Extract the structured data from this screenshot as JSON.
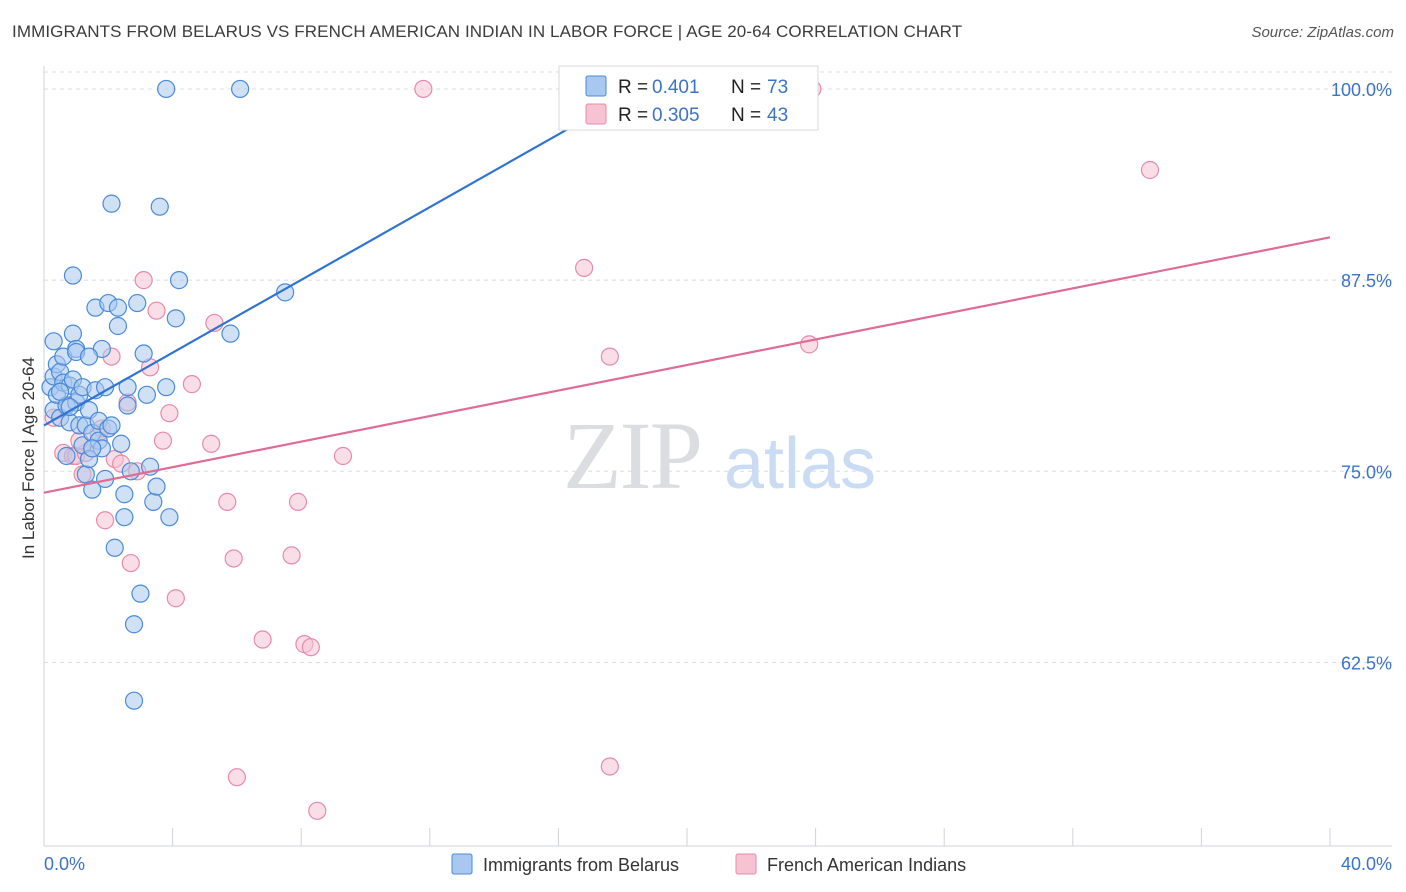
{
  "title": "IMMIGRANTS FROM BELARUS VS FRENCH AMERICAN INDIAN IN LABOR FORCE | AGE 20-64 CORRELATION CHART",
  "source": "Source: ZipAtlas.com",
  "watermark": {
    "zip": "ZIP",
    "atlas": "atlas"
  },
  "colors": {
    "blue_fill": "#a9c8ef",
    "blue_stroke": "#4a8bd9",
    "blue_line": "#2f74d0",
    "pink_fill": "#f6c3d3",
    "pink_stroke": "#e88aa8",
    "pink_line": "#e06b93",
    "accent_text": "#3b73c8",
    "grid": "#d8dde6"
  },
  "chart_data": {
    "type": "scatter",
    "title": "IMMIGRANTS FROM BELARUS VS FRENCH AMERICAN INDIAN IN LABOR FORCE | AGE 20-64 CORRELATION CHART",
    "xlabel": "",
    "ylabel": "In Labor Force | Age 20-64",
    "xlim": [
      0,
      40
    ],
    "ylim": [
      50.5,
      101.5
    ],
    "x_tick_labels": {
      "min": "0.0%",
      "max": "40.0%"
    },
    "y_ticks": [
      {
        "value": 100.0,
        "label": "100.0%"
      },
      {
        "value": 87.5,
        "label": "87.5%"
      },
      {
        "value": 75.0,
        "label": "75.0%"
      },
      {
        "value": 62.5,
        "label": "62.5%"
      }
    ],
    "legend": {
      "rows": [
        {
          "r_label": "R =",
          "r_value": "0.401",
          "n_label": "N =",
          "n_value": "73"
        },
        {
          "r_label": "R =",
          "r_value": "0.305",
          "n_label": "N =",
          "n_value": "43"
        }
      ]
    },
    "series": [
      {
        "name": "Immigrants from Belarus",
        "color": "blue",
        "trendline": {
          "x": [
            0.0,
            18.5
          ],
          "y": [
            78.0,
            100.0
          ]
        },
        "points": [
          [
            0.2,
            80.5
          ],
          [
            0.3,
            81.2
          ],
          [
            0.3,
            79.0
          ],
          [
            0.4,
            82.0
          ],
          [
            0.4,
            80.0
          ],
          [
            0.5,
            78.5
          ],
          [
            0.5,
            81.5
          ],
          [
            0.6,
            80.8
          ],
          [
            0.6,
            82.5
          ],
          [
            0.7,
            79.3
          ],
          [
            0.8,
            80.6
          ],
          [
            0.8,
            78.2
          ],
          [
            0.9,
            81.0
          ],
          [
            0.9,
            84.0
          ],
          [
            0.9,
            87.8
          ],
          [
            1.0,
            83.0
          ],
          [
            1.0,
            79.5
          ],
          [
            1.1,
            80.0
          ],
          [
            1.1,
            78.0
          ],
          [
            1.2,
            76.7
          ],
          [
            1.2,
            80.5
          ],
          [
            1.3,
            74.8
          ],
          [
            1.3,
            78.0
          ],
          [
            1.4,
            75.8
          ],
          [
            1.4,
            79.0
          ],
          [
            1.5,
            77.5
          ],
          [
            1.5,
            73.8
          ],
          [
            1.6,
            85.7
          ],
          [
            1.6,
            80.3
          ],
          [
            1.7,
            77.0
          ],
          [
            1.7,
            78.3
          ],
          [
            1.8,
            83.0
          ],
          [
            1.8,
            76.5
          ],
          [
            1.9,
            74.5
          ],
          [
            1.9,
            80.5
          ],
          [
            2.0,
            86.0
          ],
          [
            2.0,
            77.8
          ],
          [
            2.1,
            78.0
          ],
          [
            2.2,
            70.0
          ],
          [
            2.3,
            84.5
          ],
          [
            2.3,
            85.7
          ],
          [
            2.4,
            76.8
          ],
          [
            2.5,
            73.5
          ],
          [
            2.5,
            72.0
          ],
          [
            2.6,
            79.3
          ],
          [
            2.7,
            75.0
          ],
          [
            2.8,
            65.0
          ],
          [
            2.8,
            60.0
          ],
          [
            2.9,
            86.0
          ],
          [
            3.0,
            67.0
          ],
          [
            3.1,
            82.7
          ],
          [
            3.2,
            80.0
          ],
          [
            3.3,
            75.3
          ],
          [
            3.4,
            73.0
          ],
          [
            3.5,
            74.0
          ],
          [
            3.6,
            92.3
          ],
          [
            3.8,
            80.5
          ],
          [
            3.9,
            72.0
          ],
          [
            4.1,
            85.0
          ],
          [
            4.2,
            87.5
          ],
          [
            5.8,
            84.0
          ],
          [
            7.5,
            86.7
          ],
          [
            3.8,
            100.0
          ],
          [
            6.1,
            100.0
          ],
          [
            2.1,
            92.5
          ],
          [
            0.7,
            76.0
          ],
          [
            1.0,
            82.8
          ],
          [
            0.3,
            83.5
          ],
          [
            1.4,
            82.5
          ],
          [
            2.6,
            80.5
          ],
          [
            1.5,
            76.5
          ],
          [
            0.5,
            80.2
          ],
          [
            0.8,
            79.2
          ]
        ]
      },
      {
        "name": "French American Indians",
        "color": "pink",
        "trendline": {
          "x": [
            0.0,
            40.0
          ],
          "y": [
            73.6,
            90.3
          ]
        },
        "points": [
          [
            0.3,
            78.5
          ],
          [
            0.6,
            76.2
          ],
          [
            0.9,
            76.0
          ],
          [
            1.0,
            76.0
          ],
          [
            1.2,
            74.8
          ],
          [
            1.3,
            76.2
          ],
          [
            1.5,
            76.5
          ],
          [
            1.7,
            77.5
          ],
          [
            1.8,
            77.8
          ],
          [
            1.9,
            71.8
          ],
          [
            2.1,
            82.5
          ],
          [
            2.2,
            75.8
          ],
          [
            2.4,
            75.5
          ],
          [
            2.6,
            79.5
          ],
          [
            2.7,
            69.0
          ],
          [
            2.9,
            75.0
          ],
          [
            3.1,
            87.5
          ],
          [
            3.3,
            81.8
          ],
          [
            3.5,
            85.5
          ],
          [
            3.7,
            77.0
          ],
          [
            3.9,
            78.8
          ],
          [
            4.1,
            66.7
          ],
          [
            4.6,
            80.7
          ],
          [
            5.2,
            76.8
          ],
          [
            5.3,
            84.7
          ],
          [
            5.7,
            73.0
          ],
          [
            5.9,
            69.3
          ],
          [
            6.0,
            55.0
          ],
          [
            6.8,
            64.0
          ],
          [
            7.7,
            69.5
          ],
          [
            7.9,
            73.0
          ],
          [
            8.1,
            63.7
          ],
          [
            8.3,
            63.5
          ],
          [
            8.5,
            52.8
          ],
          [
            9.3,
            76.0
          ],
          [
            11.8,
            100.0
          ],
          [
            16.8,
            88.3
          ],
          [
            17.6,
            82.5
          ],
          [
            17.6,
            55.7
          ],
          [
            23.9,
            100.0
          ],
          [
            23.8,
            83.3
          ],
          [
            34.4,
            94.7
          ],
          [
            1.1,
            77.0
          ]
        ]
      }
    ]
  },
  "bottom_legend": {
    "items": [
      {
        "label": "Immigrants from Belarus"
      },
      {
        "label": "French American Indians"
      }
    ]
  }
}
